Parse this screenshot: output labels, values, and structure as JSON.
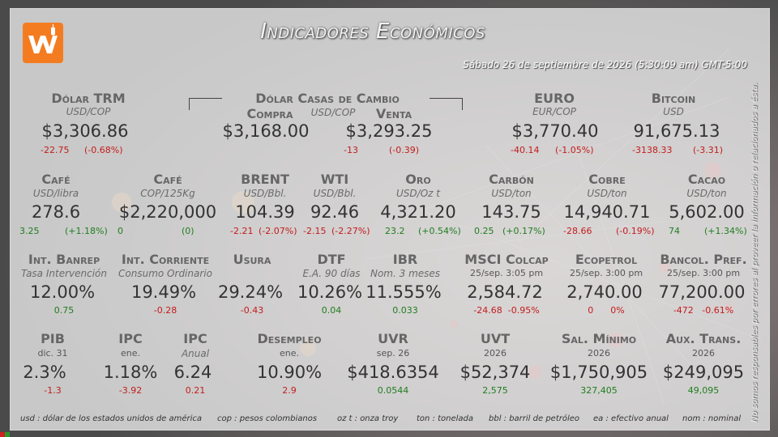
{
  "header": {
    "title": "Indicadores Económicos",
    "datetime": "Sábado 26 de septiembre de 2026 (5:30:09 am) GMT-5:00",
    "logo_text": "W"
  },
  "disclaimer": "No somos responsables por errores al proveer la información o relacionados a ésta.",
  "colors": {
    "accent": "#f47c20",
    "negative": "#c41c1c",
    "positive": "#1e7e1e"
  },
  "row1": {
    "trm": {
      "label": "Dólar TRM",
      "sub": "USD/COP",
      "value": "$3,306.86",
      "ch1": "-22.75",
      "ch2": "(-0.68%)"
    },
    "casas": {
      "label": "Dólar Casas de Cambio",
      "sub": "USD/COP",
      "compra": {
        "label": "Compra",
        "value": "$3,168.00"
      },
      "venta": {
        "label": "Venta",
        "value": "$3,293.25",
        "ch1": "-13",
        "ch2": "(-0.39)"
      }
    },
    "euro": {
      "label": "EURO",
      "sub": "EUR/COP",
      "value": "$3,770.40",
      "ch1": "-40.14",
      "ch2": "(-1.05%)"
    },
    "bitcoin": {
      "label": "Bitcoin",
      "sub": "USD",
      "value": "91,675.13",
      "ch1": "-3138.33",
      "ch2": "(-3.31)"
    }
  },
  "row2": [
    {
      "label": "Café",
      "sub": "USD/libra",
      "value": "278.6",
      "ch1": "3.25",
      "ch2": "(+1.18%)",
      "dir": "pos"
    },
    {
      "label": "Café",
      "sub": "COP/125Kg",
      "value": "$2,220,000",
      "ch1": "0",
      "ch2": "(0)",
      "dir": "pos"
    },
    {
      "label": "BRENT",
      "sub": "USD/Bbl.",
      "value": "104.39",
      "ch1": "-2.21",
      "ch2": "(-2.07%)",
      "dir": "neg"
    },
    {
      "label": "WTI",
      "sub": "USD/Bbl.",
      "value": "92.46",
      "ch1": "-2.15",
      "ch2": "(-2.27%)",
      "dir": "neg"
    },
    {
      "label": "Oro",
      "sub": "USD/Oz t",
      "value": "4,321.20",
      "ch1": "23.2",
      "ch2": "(+0.54%)",
      "dir": "pos"
    },
    {
      "label": "Carbón",
      "sub": "USD/ton",
      "value": "143.75",
      "ch1": "0.25",
      "ch2": "(+0.17%)",
      "dir": "pos"
    },
    {
      "label": "Cobre",
      "sub": "USD/ton",
      "value": "14,940.71",
      "ch1": "-28.66",
      "ch2": "(-0.19%)",
      "dir": "neg"
    },
    {
      "label": "Cacao",
      "sub": "USD/ton",
      "value": "5,602.00",
      "ch1": "74",
      "ch2": "(+1.34%)",
      "dir": "pos"
    }
  ],
  "row3": [
    {
      "label": "Int. Banrep",
      "sub": "Tasa Intervención",
      "value": "12.00%",
      "ch": "0.75",
      "dir": "pos"
    },
    {
      "label": "Int. Corriente",
      "sub": "Consumo Ordinario",
      "value": "19.49%",
      "ch": "-0.28",
      "dir": "neg"
    },
    {
      "label": "Usura",
      "sub": "",
      "value": "29.24%",
      "ch": "-0.43",
      "dir": "neg"
    },
    {
      "label": "DTF",
      "sub": "E.A. 90 días",
      "value": "10.26%",
      "ch": "0.04",
      "dir": "pos"
    },
    {
      "label": "IBR",
      "sub": "Nom. 3 meses",
      "value": "11.555%",
      "ch": "0.033",
      "dir": "pos"
    },
    {
      "label": "MSCI Colcap",
      "sub": "25/sep. 3:05 pm",
      "value": "2,584.72",
      "ch": "-24.68  -0.95%",
      "dir": "neg"
    },
    {
      "label": "Ecopetrol",
      "sub": "25/sep. 3:00 pm",
      "value": "2,740.00",
      "ch": "0      0%",
      "dir": "neg"
    },
    {
      "label": "Bancol. Pref.",
      "sub": "25/sep. 3:00 pm",
      "value": "77,200.00",
      "ch": "-472   -0.61%",
      "dir": "neg"
    }
  ],
  "row4": [
    {
      "label": "PIB",
      "sub": "dic. 31",
      "value": "2.3%",
      "ch": "-1.3",
      "dir": "neg"
    },
    {
      "label": "IPC",
      "sub": "ene.",
      "value": "1.18%",
      "ch": "-3.92",
      "dir": "neg"
    },
    {
      "label": "IPC",
      "sub": "Anual",
      "value": "6.24",
      "ch": "0.21",
      "dir": "neg"
    },
    {
      "label": "Desempleo",
      "sub": "ene.",
      "value": "10.90%",
      "ch": "2.9",
      "dir": "neg"
    },
    {
      "label": "UVR",
      "sub": "sep. 26",
      "value": "$418.6354",
      "ch": "0.0544",
      "dir": "pos"
    },
    {
      "label": "UVT",
      "sub": "2026",
      "value": "$52,374",
      "ch": "2,575",
      "dir": "pos"
    },
    {
      "label": "Sal. Mínimo",
      "sub": "2026",
      "value": "$1,750,905",
      "ch": "327,405",
      "dir": "pos"
    },
    {
      "label": "Aux. Trans.",
      "sub": "2026",
      "value": "$249,095",
      "ch": "49,095",
      "dir": "pos"
    }
  ],
  "footer": [
    "usd : dólar de los estados unidos de américa",
    "cop : pesos colombianos",
    "oz t : onza troy",
    "ton : tonelada",
    "bbl : barril de petróleo",
    "ea : efectivo anual",
    "nom : nominal"
  ]
}
